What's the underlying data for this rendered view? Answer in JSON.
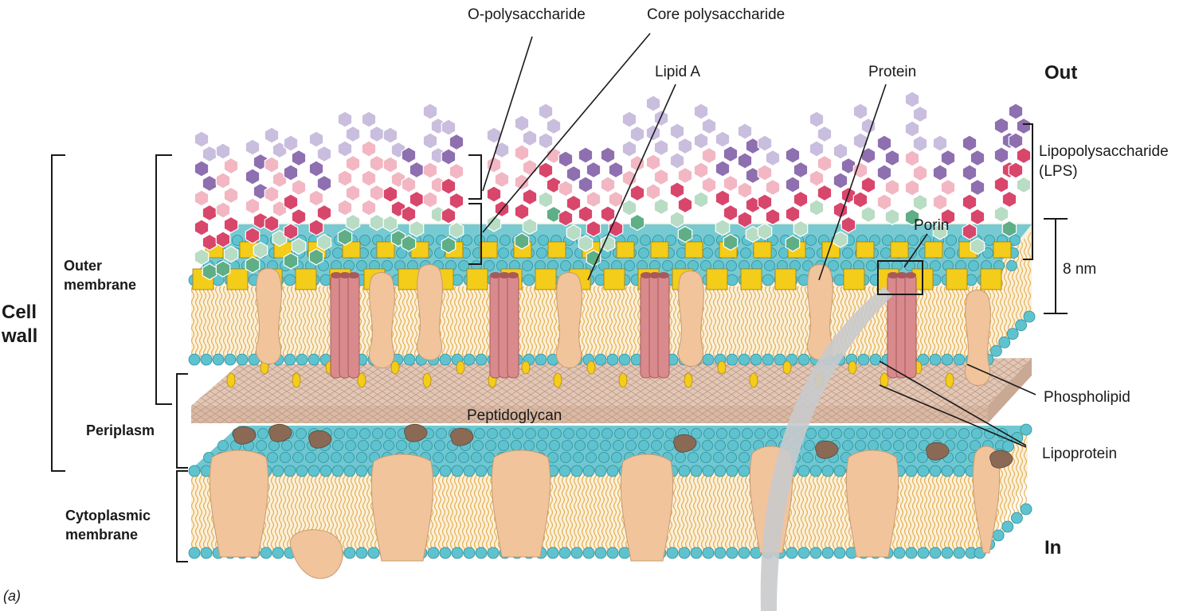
{
  "labels": {
    "o_polysaccharide": "O-polysaccharide",
    "core_polysaccharide": "Core polysaccharide",
    "lipid_a": "Lipid A",
    "protein": "Protein",
    "out": "Out",
    "in": "In",
    "lps_line1": "Lipopolysaccharide",
    "lps_line2": "(LPS)",
    "porin": "Porin",
    "eight_nm": "8 nm",
    "phospholipid": "Phospholipid",
    "lipoprotein": "Lipoprotein",
    "peptidoglycan": "Peptidoglycan",
    "outer_membrane_line1": "Outer",
    "outer_membrane_line2": "membrane",
    "cell_wall_line1": "Cell",
    "cell_wall_line2": "wall",
    "periplasm": "Periplasm",
    "cytoplasmic_line1": "Cytoplasmic",
    "cytoplasmic_line2": "membrane",
    "panel": "(a)"
  },
  "colors": {
    "lipid_head": "#5fc3cf",
    "lipid_tail": "#e2a640",
    "lipid_core": "#fbf1dc",
    "lipid_a": "#f4cc1a",
    "protein": "#f1c49c",
    "porin": "#d98a8c",
    "peptidoglycan": "#d9b9a4",
    "sugar_violet": "#8e6fb0",
    "sugar_lavender": "#c9bede",
    "sugar_pink": "#f2b7c3",
    "sugar_red": "#d9466b",
    "sugar_green": "#5fae86",
    "sugar_mint": "#b8dcc4",
    "cytoplasm_globule": "#8a6a55",
    "leader": "#222222"
  }
}
